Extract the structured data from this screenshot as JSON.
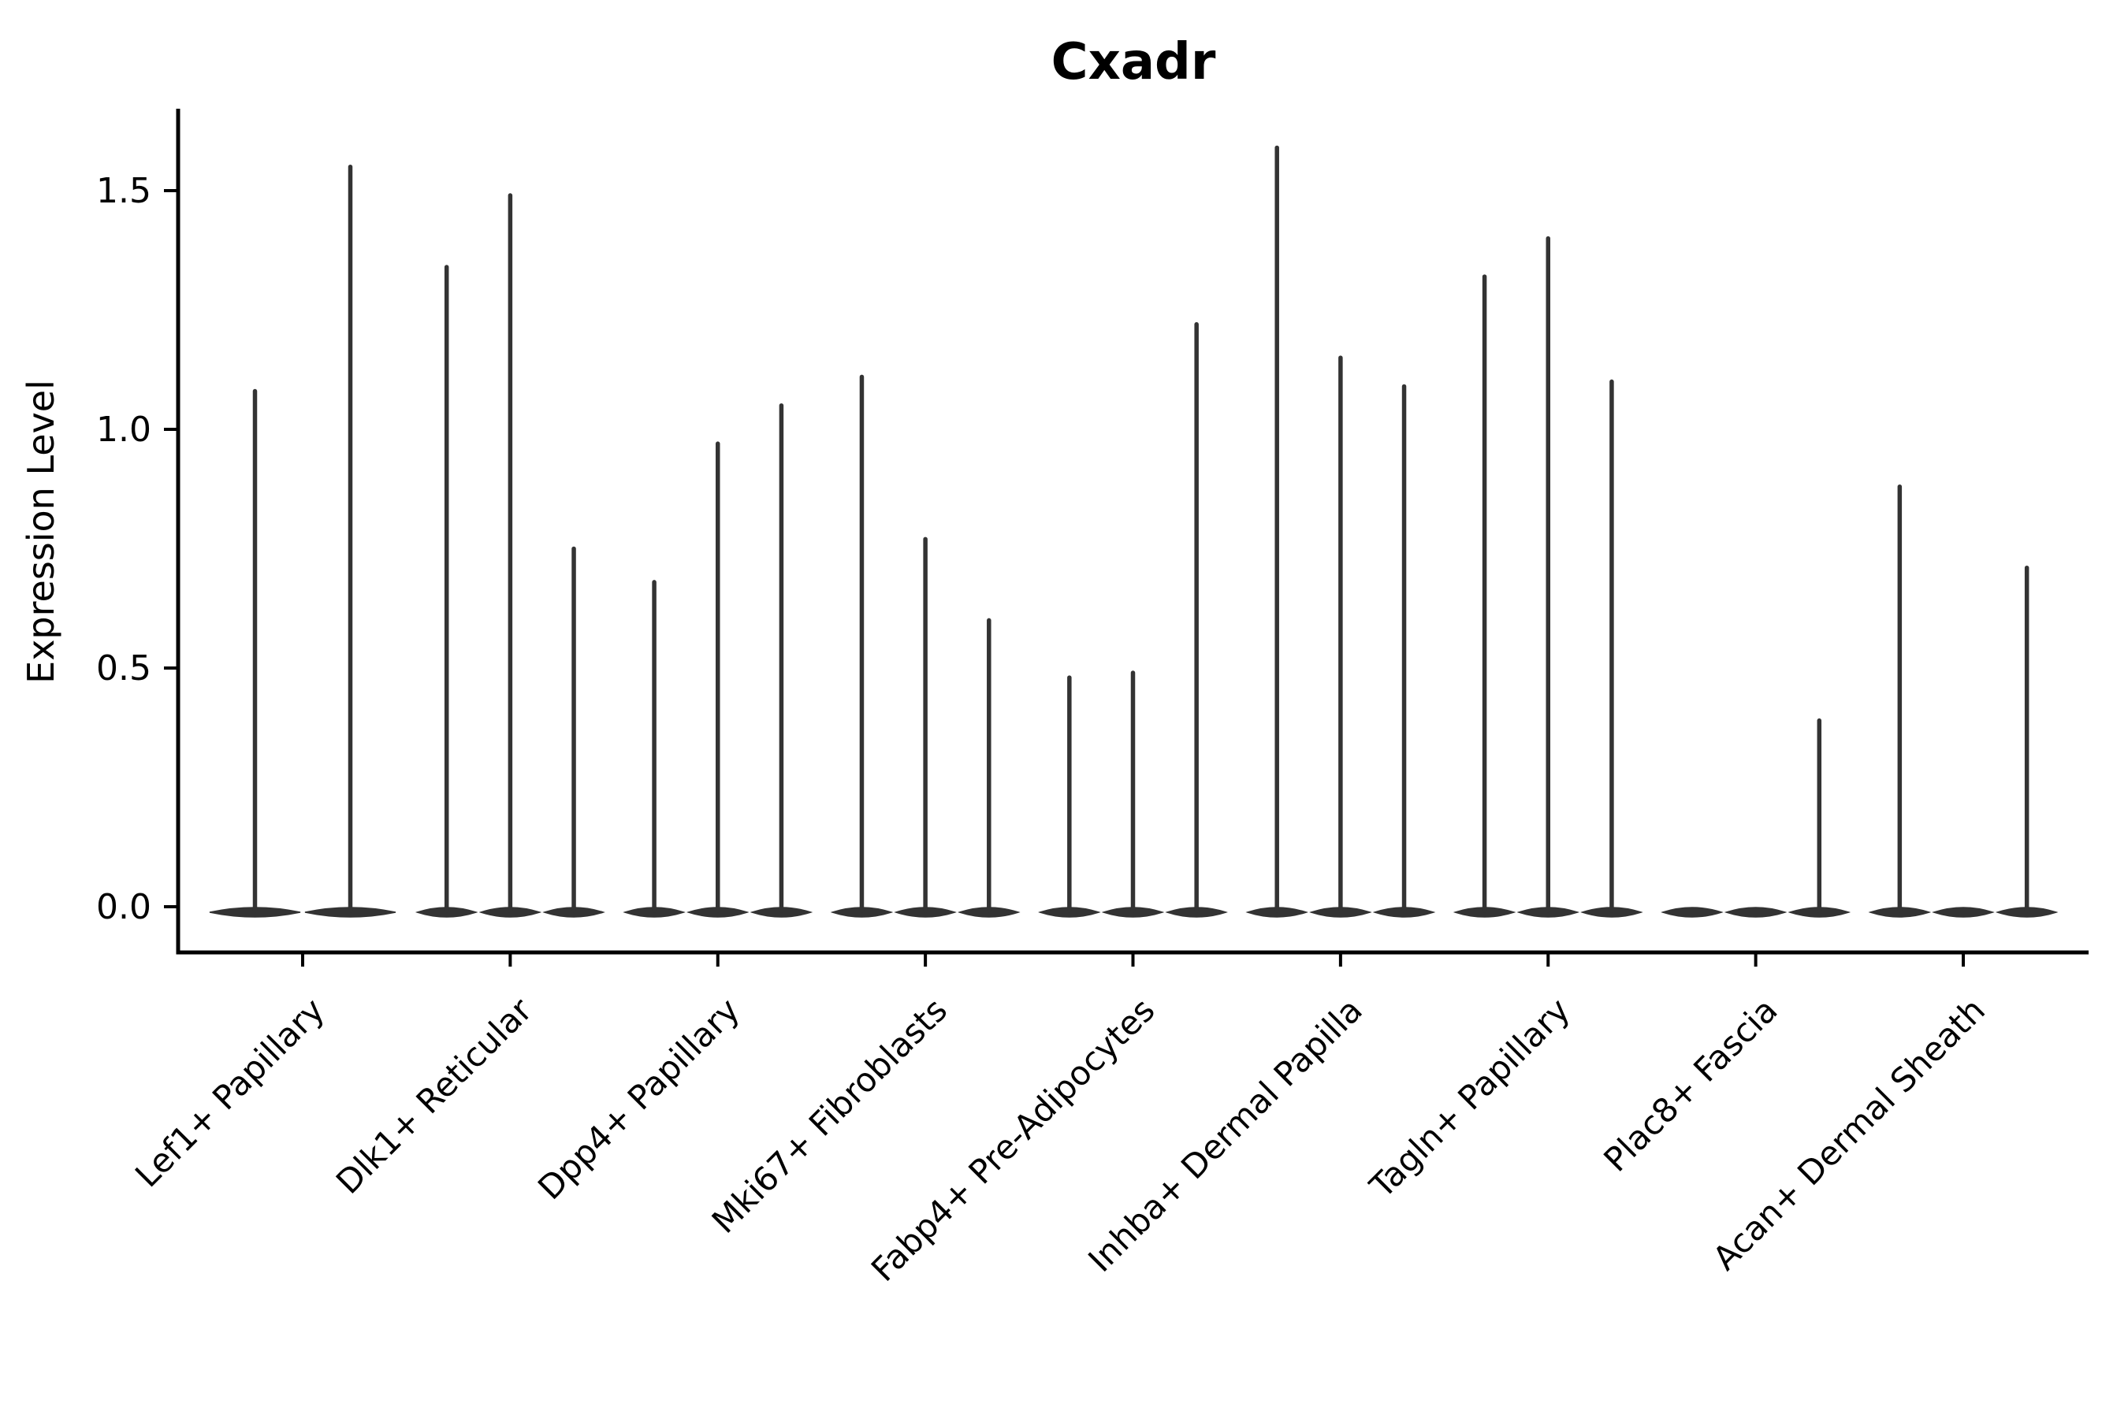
{
  "page": {
    "background": "#ffffff"
  },
  "chart_data": {
    "type": "violin",
    "title": "Cxadr",
    "ylabel": "Expression Level",
    "xlabel": "",
    "yticks": [
      0.0,
      0.5,
      1.0,
      1.5
    ],
    "ylim": [
      -0.1,
      1.67
    ],
    "grid": false,
    "legend_position": "none",
    "colors": {
      "violin": "#333333",
      "axis": "#000000",
      "text": "#000000"
    },
    "categories": [
      "Lef1+ Papillary",
      "Dlk1+ Reticular",
      "Dpp4+ Papillary",
      "Mki67+ Fibroblasts",
      "Fabp4+ Pre-Adipocytes",
      "Inhba+ Dermal Papilla",
      "Tagln+ Papillary",
      "Plac8+ Fascia",
      "Acan+ Dermal Sheath"
    ],
    "groups": [
      {
        "category": "Lef1+ Papillary",
        "violin_maxima": [
          1.08,
          1.55
        ]
      },
      {
        "category": "Dlk1+ Reticular",
        "violin_maxima": [
          1.34,
          1.49,
          0.75
        ]
      },
      {
        "category": "Dpp4+ Papillary",
        "violin_maxima": [
          0.68,
          0.97,
          1.05
        ]
      },
      {
        "category": "Mki67+ Fibroblasts",
        "violin_maxima": [
          1.11,
          0.77,
          0.6
        ]
      },
      {
        "category": "Fabp4+ Pre-Adipocytes",
        "violin_maxima": [
          0.48,
          0.49,
          1.22
        ]
      },
      {
        "category": "Inhba+ Dermal Papilla",
        "violin_maxima": [
          1.59,
          1.15,
          1.09
        ]
      },
      {
        "category": "Tagln+ Papillary",
        "violin_maxima": [
          1.32,
          1.4,
          1.1
        ]
      },
      {
        "category": "Plac8+ Fascia",
        "violin_maxima": [
          0.0,
          0.0,
          0.39
        ]
      },
      {
        "category": "Acan+ Dermal Sheath",
        "violin_maxima": [
          0.88,
          0.0,
          0.71
        ]
      }
    ]
  }
}
